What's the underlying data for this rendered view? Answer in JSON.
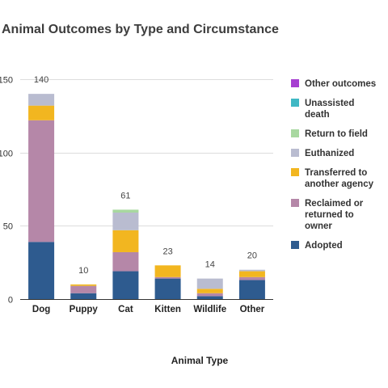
{
  "chart_data": {
    "type": "bar",
    "stacked": true,
    "title": "Animal Outcomes by Type and Circumstance",
    "xlabel": "Animal Type",
    "ylabel": "",
    "ylim": [
      0,
      150
    ],
    "yticks": [
      "0",
      "50",
      "100",
      "150"
    ],
    "ytick_values": [
      0,
      50,
      100,
      150
    ],
    "grid": true,
    "legend_position": "right",
    "categories": [
      "Dog",
      "Puppy",
      "Cat",
      "Kitten",
      "Wildlife",
      "Other"
    ],
    "totals": [
      140,
      10,
      61,
      23,
      14,
      20
    ],
    "series": [
      {
        "name": "Adopted",
        "color": "#2e5b8f",
        "values": [
          39,
          4,
          19,
          14,
          2,
          13
        ]
      },
      {
        "name": "Reclaimed or returned to owner",
        "color": "#b587a8",
        "values": [
          83,
          5,
          13,
          1,
          2,
          2
        ]
      },
      {
        "name": "Transferred to another agency",
        "color": "#f2b620",
        "values": [
          10,
          1,
          15,
          8,
          3,
          4
        ]
      },
      {
        "name": "Euthanized",
        "color": "#b9bcd0",
        "values": [
          8,
          0,
          12,
          0,
          7,
          1
        ]
      },
      {
        "name": "Return to field",
        "color": "#a8d8a0",
        "values": [
          0,
          0,
          2,
          0,
          0,
          0
        ]
      },
      {
        "name": "Unassisted death",
        "color": "#3fb8c4",
        "values": [
          0,
          0,
          0,
          0,
          0,
          0
        ]
      },
      {
        "name": "Other outcomes",
        "color": "#a63fd1",
        "values": [
          0,
          0,
          0,
          0,
          0,
          0
        ]
      }
    ],
    "legend_lines": [
      [
        "Other outcomes"
      ],
      [
        "Unassisted",
        "death"
      ],
      [
        "Return to field"
      ],
      [
        "Euthanized"
      ],
      [
        "Transferred to",
        "another agency"
      ],
      [
        "Reclaimed or",
        "returned to",
        "owner"
      ],
      [
        "Adopted"
      ]
    ]
  }
}
